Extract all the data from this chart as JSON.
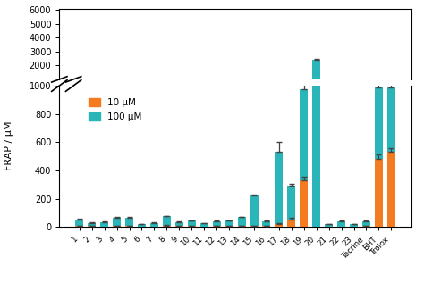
{
  "categories": [
    "1",
    "2",
    "3",
    "4",
    "5",
    "6",
    "7",
    "8",
    "9",
    "10",
    "11",
    "12",
    "13",
    "14",
    "15",
    "16",
    "17",
    "18",
    "19",
    "20",
    "21",
    "22",
    "23",
    "Tacrine",
    "BHT",
    "Trolox"
  ],
  "values_10uM": [
    5,
    5,
    0,
    8,
    5,
    0,
    0,
    10,
    5,
    5,
    0,
    5,
    5,
    5,
    5,
    5,
    20,
    50,
    330,
    0,
    0,
    0,
    0,
    5,
    480,
    530
  ],
  "values_100uM": [
    55,
    30,
    35,
    65,
    65,
    20,
    30,
    75,
    35,
    45,
    25,
    40,
    45,
    70,
    220,
    40,
    530,
    290,
    975,
    2380,
    20,
    40,
    20,
    40,
    990,
    990
  ],
  "err_10uM": [
    2,
    2,
    0,
    2,
    2,
    0,
    0,
    3,
    2,
    2,
    0,
    2,
    2,
    2,
    2,
    2,
    5,
    15,
    25,
    0,
    0,
    0,
    0,
    2,
    35,
    25
  ],
  "err_100uM": [
    4,
    3,
    3,
    4,
    4,
    2,
    2,
    5,
    3,
    3,
    2,
    3,
    3,
    4,
    10,
    3,
    70,
    18,
    45,
    70,
    2,
    3,
    2,
    3,
    45,
    110
  ],
  "color_10uM": "#f47b20",
  "color_100uM": "#2ab5b8",
  "ylabel": "FRAP / μM",
  "legend_10uM": "10 μM",
  "legend_100uM": "100 μM"
}
